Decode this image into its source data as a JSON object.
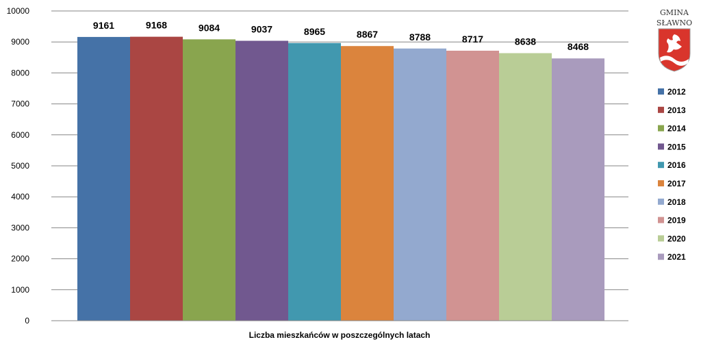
{
  "chart_data": {
    "type": "bar",
    "title": "",
    "xlabel": "Liczba mieszkańców w poszczególnych latach",
    "ylabel": "",
    "ylim": [
      0,
      10000
    ],
    "yticks": [
      0,
      1000,
      2000,
      3000,
      4000,
      5000,
      6000,
      7000,
      8000,
      9000,
      10000
    ],
    "grid": true,
    "legend_position": "right",
    "categories": [
      "2012",
      "2013",
      "2014",
      "2015",
      "2016",
      "2017",
      "2018",
      "2019",
      "2020",
      "2021"
    ],
    "values": [
      9161,
      9168,
      9084,
      9037,
      8965,
      8867,
      8788,
      8717,
      8638,
      8468
    ],
    "colors": [
      "#4572a7",
      "#aa4643",
      "#89a54e",
      "#71588f",
      "#4198af",
      "#db843d",
      "#93a9cf",
      "#d19392",
      "#b9cd96",
      "#a99bbd"
    ]
  },
  "logo": {
    "line1": "GMINA",
    "line2": "SŁAWNO"
  }
}
